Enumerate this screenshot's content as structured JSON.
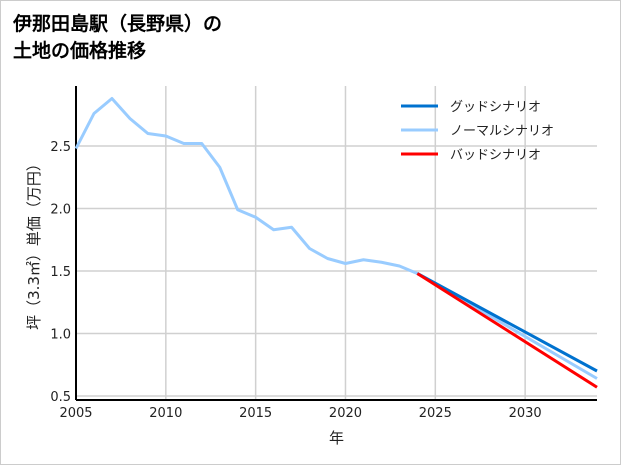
{
  "chart_data": {
    "type": "line",
    "title_lines": [
      "伊那田島駅（長野県）の",
      "土地の価格推移"
    ],
    "xlabel": "年",
    "ylabel": "坪（3.3㎡）単価（万円）",
    "xlim": [
      2005,
      2034
    ],
    "ylim": [
      0.468,
      2.98
    ],
    "xticks": [
      2005,
      2010,
      2015,
      2020,
      2025,
      2030
    ],
    "yticks": [
      0.5,
      1.0,
      1.5,
      2.0,
      2.5
    ],
    "ytick_labels": [
      "0.5",
      "1.0",
      "1.5",
      "2.0",
      "2.5"
    ],
    "grid": true,
    "legend_position": "top-right",
    "series": [
      {
        "name": "グッドシナリオ",
        "color": "#0072cf",
        "x": [
          2024,
          2034
        ],
        "y": [
          1.48,
          0.7
        ]
      },
      {
        "name": "ノーマルシナリオ",
        "color": "#99ccff",
        "x": [
          2005,
          2006,
          2007,
          2008,
          2009,
          2010,
          2011,
          2012,
          2013,
          2014,
          2015,
          2016,
          2017,
          2018,
          2019,
          2020,
          2021,
          2022,
          2023,
          2024,
          2034
        ],
        "y": [
          2.48,
          2.76,
          2.88,
          2.72,
          2.6,
          2.58,
          2.52,
          2.52,
          2.33,
          1.99,
          1.93,
          1.83,
          1.85,
          1.68,
          1.6,
          1.56,
          1.59,
          1.57,
          1.54,
          1.48,
          0.64
        ]
      },
      {
        "name": "バッドシナリオ",
        "color": "#ff0000",
        "x": [
          2024,
          2034
        ],
        "y": [
          1.48,
          0.57
        ]
      }
    ]
  }
}
